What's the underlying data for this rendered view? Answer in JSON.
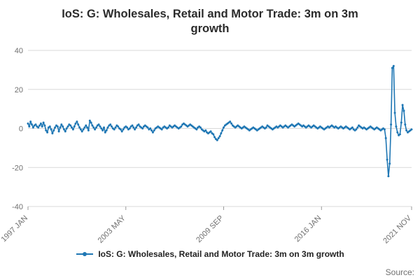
{
  "source_label": "Source:",
  "chart_data": {
    "type": "line",
    "title": "IoS: G: Wholesales, Retail and Motor Trade: 3m on 3m growth",
    "legend": "IoS: G: Wholesales, Retail and Motor Trade: 3m on 3m growth",
    "color": "#1f77b4",
    "ylim": [
      -40,
      40
    ],
    "yticks": [
      40,
      20,
      0,
      -20,
      -40
    ],
    "x_start": "1997 JAN",
    "x_end": "2021 NOV",
    "frequency": "monthly",
    "x_ticks": [
      {
        "index": 0,
        "label": "1997 JAN"
      },
      {
        "index": 76,
        "label": "2003 MAY"
      },
      {
        "index": 152,
        "label": "2009 SEP"
      },
      {
        "index": 228,
        "label": "2016 JAN"
      },
      {
        "index": 298,
        "label": "2021 NOV"
      }
    ],
    "values": [
      2.5,
      1.0,
      3.5,
      2.0,
      0.5,
      1.5,
      2.0,
      1.0,
      0.5,
      1.5,
      2.5,
      1.0,
      3.0,
      1.5,
      -1.0,
      -2.0,
      0.5,
      1.0,
      -0.5,
      -2.5,
      -1.0,
      0.5,
      1.5,
      1.0,
      -1.5,
      0.5,
      2.0,
      1.0,
      -0.5,
      -1.5,
      0.0,
      1.0,
      2.0,
      1.5,
      0.5,
      -0.5,
      1.0,
      2.5,
      3.5,
      2.0,
      0.5,
      -0.5,
      -1.5,
      -0.5,
      0.5,
      1.5,
      0.5,
      -1.0,
      4.0,
      3.0,
      1.5,
      0.5,
      -0.5,
      0.5,
      1.5,
      2.0,
      1.0,
      0.0,
      -1.0,
      0.5,
      -2.0,
      -1.0,
      0.5,
      1.5,
      2.0,
      1.0,
      0.0,
      -0.5,
      0.5,
      1.5,
      1.0,
      0.0,
      -0.5,
      -1.5,
      -0.5,
      0.5,
      1.0,
      0.5,
      -0.5,
      0.0,
      1.0,
      1.5,
      0.5,
      -0.5,
      0.5,
      1.5,
      2.0,
      1.0,
      0.5,
      0.0,
      1.0,
      1.5,
      1.0,
      0.5,
      -0.5,
      0.0,
      -1.0,
      -2.0,
      -1.0,
      0.0,
      0.5,
      1.0,
      0.5,
      0.0,
      -0.5,
      0.5,
      1.0,
      0.5,
      0.0,
      0.5,
      1.5,
      1.0,
      0.5,
      1.0,
      1.5,
      1.0,
      0.5,
      0.0,
      0.5,
      1.0,
      2.0,
      2.5,
      2.0,
      1.5,
      1.0,
      1.5,
      2.0,
      1.5,
      1.0,
      0.5,
      0.0,
      -0.5,
      0.5,
      1.0,
      0.5,
      -0.5,
      -1.0,
      -1.5,
      -1.0,
      -2.0,
      -2.5,
      -2.0,
      -1.5,
      -2.5,
      -3.0,
      -4.5,
      -5.5,
      -6.0,
      -5.0,
      -4.0,
      -2.5,
      -1.0,
      0.5,
      1.5,
      2.0,
      2.5,
      3.0,
      3.5,
      2.5,
      1.5,
      1.0,
      0.5,
      1.0,
      1.5,
      1.0,
      0.5,
      0.0,
      0.5,
      1.0,
      0.5,
      0.0,
      -0.5,
      -1.0,
      -0.5,
      0.0,
      0.5,
      0.0,
      -0.5,
      -1.0,
      -0.5,
      0.0,
      0.5,
      1.0,
      0.5,
      0.0,
      0.5,
      1.5,
      1.0,
      0.5,
      0.0,
      -0.5,
      0.0,
      0.5,
      1.0,
      0.5,
      1.0,
      1.5,
      1.0,
      0.5,
      1.0,
      1.5,
      1.0,
      0.5,
      1.0,
      1.5,
      2.0,
      1.5,
      1.0,
      1.5,
      2.0,
      2.5,
      2.0,
      1.5,
      1.0,
      1.5,
      1.0,
      0.5,
      1.0,
      1.5,
      1.0,
      0.5,
      1.0,
      1.5,
      1.0,
      0.5,
      0.0,
      0.5,
      1.0,
      0.5,
      0.0,
      -0.5,
      0.0,
      0.5,
      1.0,
      0.5,
      1.0,
      1.5,
      1.0,
      0.5,
      1.0,
      0.5,
      0.0,
      0.5,
      1.0,
      0.5,
      0.0,
      0.5,
      1.0,
      0.5,
      0.0,
      -0.5,
      0.0,
      0.5,
      -0.5,
      -1.0,
      -0.5,
      0.5,
      1.5,
      1.0,
      0.5,
      0.0,
      0.5,
      0.0,
      -0.5,
      0.0,
      0.5,
      1.0,
      0.5,
      0.0,
      -0.5,
      0.0,
      0.5,
      0.0,
      -0.5,
      -1.0,
      -0.5,
      0.0,
      -0.5,
      -5.0,
      -16.0,
      -24.5,
      -18.0,
      2.0,
      31.0,
      32.0,
      8.0,
      1.0,
      -2.0,
      -3.5,
      -3.0,
      3.0,
      12.0,
      9.0,
      2.0,
      -1.0,
      -2.0,
      -1.5,
      -1.0,
      -0.5
    ]
  }
}
